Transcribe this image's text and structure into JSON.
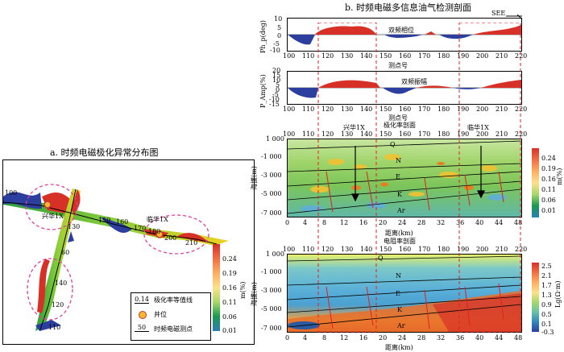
{
  "left": {
    "title": "a. 时频电磁极化异常分布图",
    "stations": [
      "100",
      "130",
      "150",
      "160",
      "170",
      "180",
      "190",
      "200",
      "210",
      "40",
      "60",
      "90",
      "100",
      "110",
      "120",
      "140"
    ],
    "wells": [
      "兴华1X",
      "临华1X"
    ],
    "colorbar_ticks": [
      "0.24",
      "0.19",
      "0.16",
      "0.11",
      "0.06",
      "0.01"
    ],
    "colorbar_label": "m(%)",
    "legend": [
      {
        "icon": "0.14",
        "label": "极化率等值线"
      },
      {
        "icon": "",
        "label": "井位"
      },
      {
        "icon": "50",
        "label": "时频电磁测点"
      }
    ]
  },
  "right": {
    "title": "b. 时频电磁多信息油气检测剖面",
    "see_label": "SEE",
    "ph": {
      "ylabel": "Ph_p(deg)",
      "yticks": [
        "10",
        "5",
        "0",
        "-5",
        "-10"
      ],
      "xticks": [
        "100",
        "110",
        "120",
        "130",
        "140",
        "150",
        "160",
        "170",
        "180",
        "190",
        "200",
        "210",
        "220"
      ],
      "xlabel": "测点号",
      "series_label": "双频相位"
    },
    "amp": {
      "ylabel": "P_Amp(%)",
      "yticks": [
        "20",
        "15",
        "10",
        "5",
        "0",
        "-5",
        "-10",
        "-15"
      ],
      "xticks": [
        "100",
        "110",
        "120",
        "130",
        "140",
        "150",
        "160",
        "170",
        "180",
        "190",
        "200",
        "210",
        "220"
      ],
      "xlabel": "测点号",
      "series_label": "双频振幅"
    },
    "pol": {
      "title": "极化率剖面",
      "ylabel": "海拔(m)",
      "top_ticks": [
        "100",
        "110",
        "120",
        "130",
        "140",
        "150",
        "160",
        "170",
        "180",
        "190",
        "200",
        "210",
        "220"
      ],
      "yticks": [
        "1 000",
        "-1 000",
        "-3 000",
        "-5 000",
        "-7 000"
      ],
      "xticks": [
        "0",
        "4",
        "8",
        "12",
        "16",
        "20",
        "24",
        "28",
        "32",
        "36",
        "40",
        "44",
        "48"
      ],
      "xlabel": "距离(km)",
      "wells": [
        "兴华1X",
        "临华1X"
      ],
      "layers": [
        "Q",
        "N",
        "E",
        "K",
        "Ar"
      ],
      "colorbar_ticks": [
        "0.24",
        "0.19",
        "0.16",
        "0.11",
        "0.06",
        "0.01"
      ],
      "colorbar_label": "m(%)"
    },
    "res": {
      "title": "电阻率剖面",
      "ylabel": "海拔(m)",
      "top_ticks": [
        "100",
        "110",
        "120",
        "130",
        "140",
        "150",
        "160",
        "170",
        "180",
        "190",
        "200",
        "210",
        "220"
      ],
      "yticks": [
        "1 000",
        "-1 000",
        "-3 000",
        "-5 000",
        "-7 000"
      ],
      "xticks": [
        "0",
        "4",
        "8",
        "12",
        "16",
        "20",
        "24",
        "28",
        "32",
        "36",
        "40",
        "44",
        "48"
      ],
      "xlabel": "距离(km)",
      "layers": [
        "Q",
        "N",
        "E",
        "K",
        "Ar"
      ],
      "colorbar_ticks": [
        "2.5",
        "2.1",
        "1.7",
        "1.3",
        "0.9",
        "0.5",
        "0.1",
        "-0.3"
      ],
      "colorbar_label": "Lg(Ω·m)"
    }
  },
  "colors": {
    "red": "#d73027",
    "blue": "#2c3e9e",
    "dashed": "#e02020",
    "pink": "#e040a0"
  }
}
